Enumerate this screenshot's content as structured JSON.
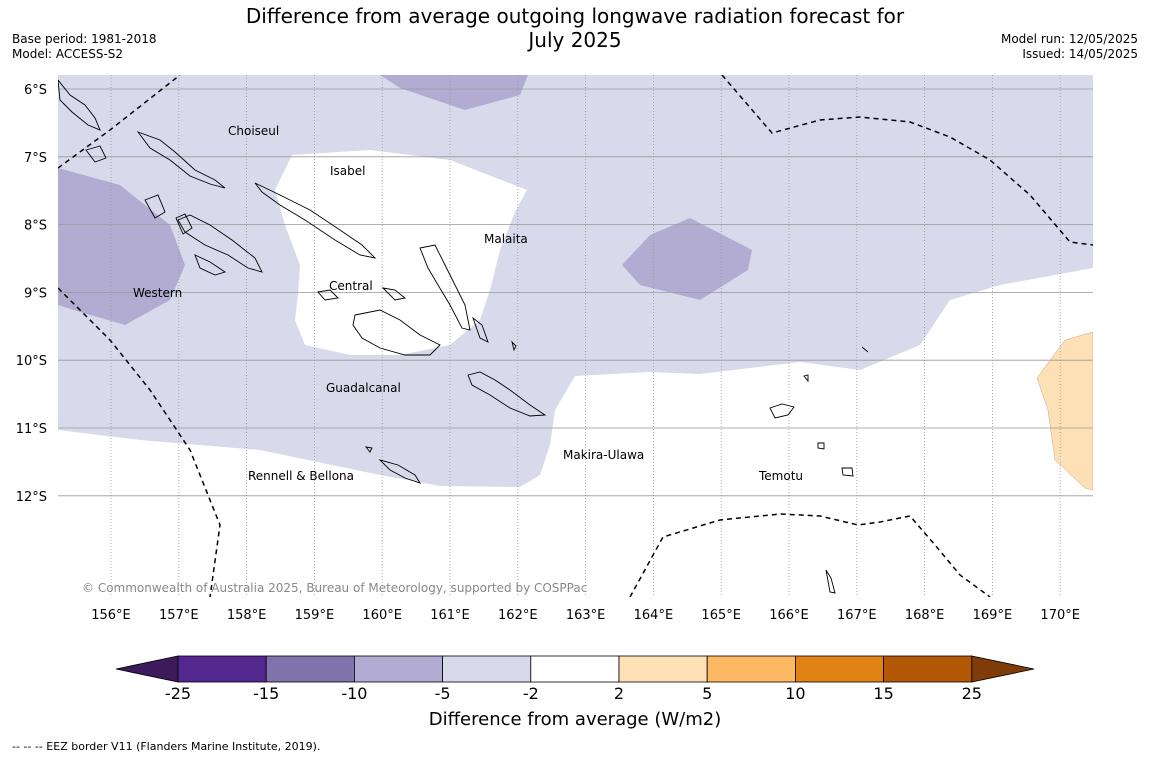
{
  "title_line1": "Difference from average outgoing longwave radiation forecast for",
  "title_line2": "July 2025",
  "base_period": "Base period: 1981-2018",
  "model": "Model: ACCESS-S2",
  "model_run": "Model run: 12/05/2025",
  "issued": "Issued: 14/05/2025",
  "copyright": "© Commonwealth of Australia 2025, Bureau of Meteorology, supported by COSPPac",
  "lat_labels": [
    "6°S",
    "7°S",
    "8°S",
    "9°S",
    "10°S",
    "11°S",
    "12°S"
  ],
  "lon_labels": [
    "156°E",
    "157°E",
    "158°E",
    "159°E",
    "160°E",
    "161°E",
    "162°E",
    "163°E",
    "164°E",
    "165°E",
    "166°E",
    "167°E",
    "168°E",
    "169°E",
    "170°E"
  ],
  "provinces": [
    "Choiseul",
    "Isabel",
    "Malaita",
    "Western",
    "Central",
    "Guadalcanal",
    "Makira-Ulawa",
    "Rennell & Bellona",
    "Temotu"
  ],
  "colorbar": {
    "ticks": [
      "-25",
      "-15",
      "-10",
      "-5",
      "-2",
      "2",
      "5",
      "10",
      "15",
      "25"
    ],
    "colors": {
      "below_-25": "#3d1a5b",
      "-25_-15": "#54278f",
      "-15_-10": "#8073ac",
      "-10_-5": "#b2abd2",
      "-5_-2": "#d8daeb",
      "-2_2": "#ffffff",
      "2_5": "#fee0b6",
      "5_10": "#fdb863",
      "10_15": "#e08214",
      "15_25": "#b35806",
      "above_25": "#7f3b08"
    },
    "label": "Difference from average (W/m2)"
  },
  "footer": "--  --  -- EEZ border V11 (Flanders Marine Institute, 2019)."
}
